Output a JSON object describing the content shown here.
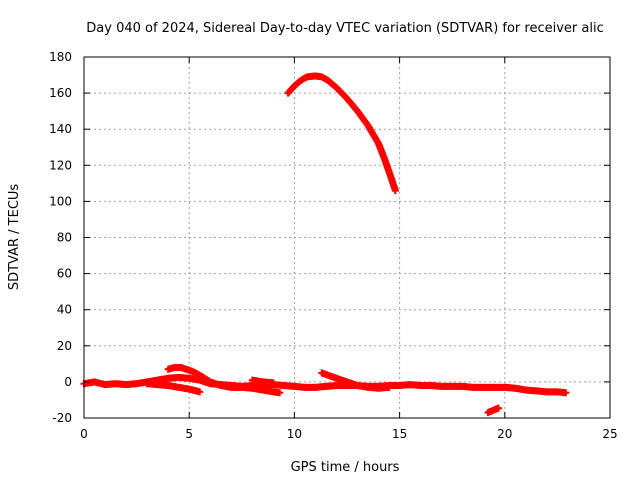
{
  "chart_data": {
    "type": "scatter",
    "title": "Day 040 of 2024, Sidereal Day-to-day VTEC variation (SDTVAR) for receiver alic",
    "xlabel": "GPS time / hours",
    "ylabel": "SDTVAR / TECUs",
    "xlim": [
      0,
      25
    ],
    "ylim": [
      -20,
      180
    ],
    "x_ticks": [
      0,
      5,
      10,
      15,
      20,
      25
    ],
    "y_ticks": [
      -20,
      0,
      20,
      40,
      60,
      80,
      100,
      120,
      140,
      160,
      180
    ],
    "grid": true,
    "marker": "plus",
    "color": "#ff0000",
    "series": [
      {
        "segments": [
          [
            [
              0.0,
              -1
            ],
            [
              0.5,
              0
            ],
            [
              1.0,
              -1.5
            ],
            [
              1.5,
              -1
            ],
            [
              2.0,
              -1.5
            ],
            [
              2.5,
              -1
            ],
            [
              3.0,
              0
            ],
            [
              3.5,
              1
            ],
            [
              4.0,
              2
            ],
            [
              4.5,
              2.5
            ],
            [
              5.0,
              2
            ],
            [
              5.5,
              1
            ],
            [
              6.0,
              -1
            ],
            [
              6.5,
              -1.5
            ],
            [
              7.0,
              -2
            ],
            [
              7.5,
              -2.5
            ],
            [
              8.0,
              -2
            ],
            [
              8.5,
              -1.5
            ],
            [
              9.0,
              -1.5
            ],
            [
              9.5,
              -2
            ],
            [
              10.0,
              -2.5
            ],
            [
              10.5,
              -3
            ],
            [
              11.0,
              -3
            ],
            [
              11.5,
              -2.5
            ],
            [
              12.0,
              -2
            ],
            [
              12.5,
              -2
            ],
            [
              13.0,
              -2
            ],
            [
              13.5,
              -2.5
            ],
            [
              14.0,
              -2.5
            ],
            [
              14.5,
              -2
            ],
            [
              15.0,
              -2
            ],
            [
              15.5,
              -1.5
            ],
            [
              16.0,
              -2
            ],
            [
              16.5,
              -2
            ],
            [
              17.0,
              -2.5
            ],
            [
              17.5,
              -2.5
            ],
            [
              18.0,
              -2.5
            ],
            [
              18.5,
              -3
            ],
            [
              19.0,
              -3
            ],
            [
              19.5,
              -3
            ],
            [
              20.0,
              -3
            ],
            [
              20.5,
              -3.5
            ],
            [
              21.0,
              -4.5
            ],
            [
              21.5,
              -5
            ],
            [
              22.0,
              -5.5
            ],
            [
              22.5,
              -5.5
            ],
            [
              22.9,
              -6
            ]
          ],
          [
            [
              4.0,
              7
            ],
            [
              4.3,
              8
            ],
            [
              4.6,
              8
            ],
            [
              5.0,
              6.5
            ],
            [
              5.3,
              5
            ],
            [
              5.6,
              3
            ],
            [
              6.0,
              0
            ],
            [
              6.5,
              -2
            ],
            [
              7.0,
              -3
            ],
            [
              7.5,
              -3
            ],
            [
              8.0,
              -3.5
            ],
            [
              8.5,
              -4.5
            ],
            [
              9.0,
              -5.5
            ],
            [
              9.3,
              -6
            ]
          ],
          [
            [
              3.0,
              -1
            ],
            [
              3.5,
              -1.5
            ],
            [
              4.0,
              -2
            ],
            [
              4.5,
              -3
            ],
            [
              5.0,
              -4
            ],
            [
              5.5,
              -5.5
            ]
          ],
          [
            [
              8.0,
              1
            ],
            [
              8.5,
              0
            ],
            [
              9.0,
              -0.5
            ]
          ],
          [
            [
              11.3,
              5
            ],
            [
              12.0,
              2
            ],
            [
              12.5,
              0
            ],
            [
              13.0,
              -2
            ],
            [
              13.5,
              -3
            ],
            [
              14.0,
              -3.5
            ],
            [
              14.5,
              -3
            ]
          ],
          [
            [
              9.7,
              160
            ],
            [
              10.0,
              164
            ],
            [
              10.3,
              167
            ],
            [
              10.6,
              169
            ],
            [
              11.0,
              169.5
            ],
            [
              11.3,
              169
            ],
            [
              11.6,
              167
            ],
            [
              12.0,
              163
            ],
            [
              12.5,
              157
            ],
            [
              13.0,
              150
            ],
            [
              13.5,
              142
            ],
            [
              14.0,
              132
            ],
            [
              14.3,
              123
            ],
            [
              14.6,
              113
            ],
            [
              14.8,
              106
            ]
          ],
          [
            [
              19.2,
              -17
            ],
            [
              19.5,
              -15.5
            ],
            [
              19.7,
              -14.5
            ]
          ]
        ]
      }
    ]
  }
}
